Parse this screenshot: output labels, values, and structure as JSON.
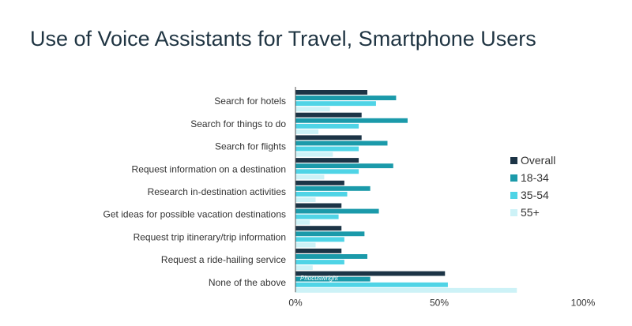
{
  "chart_data": {
    "type": "bar",
    "orientation": "horizontal",
    "title": "Use of Voice Assistants for Travel, Smartphone Users",
    "categories": [
      "Search for hotels",
      "Search for things to do",
      "Search for flights",
      "Request information on a destination",
      "Research in-destination activities",
      "Get ideas for possible vacation destinations",
      "Request trip itinerary/trip information",
      "Request a ride-hailing service",
      "None of the above"
    ],
    "series": [
      {
        "name": "Overall",
        "color": "#1c3446",
        "values": [
          25,
          23,
          23,
          22,
          17,
          16,
          16,
          16,
          52
        ]
      },
      {
        "name": "18-34",
        "color": "#1b9aaa",
        "values": [
          35,
          39,
          32,
          34,
          26,
          29,
          24,
          25,
          26
        ]
      },
      {
        "name": "35-54",
        "color": "#4fd4e6",
        "values": [
          28,
          22,
          22,
          22,
          18,
          15,
          17,
          17,
          53
        ]
      },
      {
        "name": "55+",
        "color": "#cdf2f7",
        "values": [
          12,
          8,
          13,
          10,
          7,
          5,
          7,
          6,
          77
        ]
      }
    ],
    "xlim": [
      0,
      100
    ],
    "ticks": [
      {
        "value": 0,
        "label": "0%"
      },
      {
        "value": 50,
        "label": "50%"
      },
      {
        "value": 100,
        "label": "100%"
      }
    ],
    "legend_position": "right",
    "grid": false,
    "watermark": "Phocuswright"
  }
}
